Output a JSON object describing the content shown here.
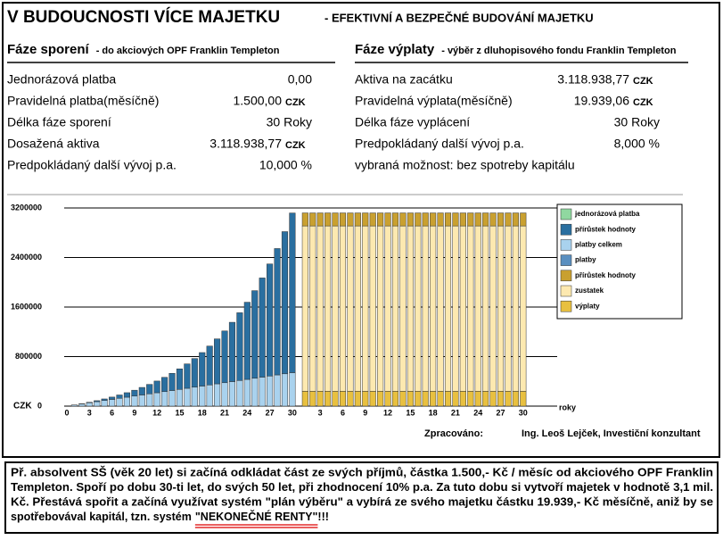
{
  "header": {
    "title": "V BUDOUCNOSTI VÍCE MAJETKU",
    "subtitle": "- EFEKTIVNÍ A BEZPEČNÉ BUDOVÁNÍ MAJETKU"
  },
  "panels": [
    {
      "title": "Fáze sporení",
      "subtitle": "- do akciových OPF Franklin Templeton",
      "rows": [
        {
          "label": "Jednorázová platba",
          "value": "0,00"
        },
        {
          "label": "Pravidelná platba(měsíčně)",
          "value": "1.500,00",
          "unit": "CZK"
        },
        {
          "label": "Délka fáze sporení",
          "value": "30 Roky"
        },
        {
          "label": "Dosažená aktiva",
          "value": "3.118.938,77",
          "unit": "CZK"
        },
        {
          "label": "Predpokládaný další vývoj p.a.",
          "value": "10,000 %"
        }
      ]
    },
    {
      "title": "Fáze výplaty",
      "subtitle": "- výběr z dluhopisového fondu Franklin Templeton",
      "rows": [
        {
          "label": "Aktiva na zacátku",
          "value": "3.118.938,77",
          "unit": "CZK"
        },
        {
          "label": "Pravidelná výplata(měsíčně)",
          "value": "19.939,06",
          "unit": "CZK"
        },
        {
          "label": "Délka fáze vyplácení",
          "value": "30 Roky"
        },
        {
          "label": "Predpokládaný další vývoj p.a.",
          "value": "8,000 %"
        },
        {
          "label": "vybraná možnost: bez spotreby kapitálu"
        }
      ]
    }
  ],
  "chart_data": {
    "type": "stacked-bar",
    "ylabel": "CZK",
    "xlabel": "roky",
    "categories": [
      "0",
      null,
      null,
      "3",
      null,
      null,
      "6",
      null,
      null,
      "9",
      null,
      null,
      "12",
      null,
      null,
      "15",
      null,
      null,
      "18",
      null,
      null,
      "21",
      null,
      null,
      "24",
      null,
      null,
      "27",
      null,
      null,
      "30",
      null,
      null,
      "3",
      null,
      null,
      "6",
      null,
      null,
      "9",
      null,
      null,
      "12",
      null,
      null,
      "15",
      null,
      null,
      "18",
      null,
      null,
      "21",
      null,
      null,
      "24",
      null,
      null,
      "27",
      null,
      null,
      "30"
    ],
    "ylim": [
      0,
      3200000
    ],
    "yticks": [
      0,
      800000,
      1600000,
      2400000,
      3200000
    ],
    "grid": true,
    "legend": "right",
    "series": [
      {
        "name": "jednorázová platba",
        "color": "#90d8a0",
        "values": [
          null,
          null,
          null,
          null,
          null,
          null,
          null,
          null,
          null,
          null,
          null,
          null,
          null,
          null,
          null,
          null,
          null,
          null,
          null,
          null,
          null,
          null,
          null,
          null,
          null,
          null,
          null,
          null,
          null,
          null,
          null,
          null,
          null,
          null,
          null,
          null,
          null,
          null,
          null,
          null,
          null,
          null,
          null,
          null,
          null,
          null,
          null,
          null,
          null,
          null,
          null,
          null,
          null,
          null,
          null,
          null,
          null,
          null,
          null,
          null,
          null
        ]
      },
      {
        "name": "přírůstek hodnoty",
        "color": "#2a6fa0",
        "values": [
          0,
          1000,
          4000,
          9000,
          16000,
          26000,
          38000,
          54000,
          73000,
          95000,
          122000,
          153000,
          189000,
          231000,
          278000,
          332000,
          394000,
          463000,
          541000,
          628000,
          726000,
          836000,
          958000,
          1094000,
          1246000,
          1415000,
          1602000,
          1810000,
          2041000,
          2296000,
          2579000,
          null,
          null,
          null,
          null,
          null,
          null,
          null,
          null,
          null,
          null,
          null,
          null,
          null,
          null,
          null,
          null,
          null,
          null,
          null,
          null,
          null,
          null,
          null,
          null,
          null,
          null,
          null,
          null,
          null,
          null
        ]
      },
      {
        "name": "platby celkem",
        "color": "#a9d2ee",
        "values": [
          0,
          18000,
          36000,
          54000,
          72000,
          90000,
          108000,
          126000,
          144000,
          162000,
          180000,
          198000,
          216000,
          234000,
          252000,
          270000,
          288000,
          306000,
          324000,
          342000,
          360000,
          378000,
          396000,
          414000,
          432000,
          450000,
          468000,
          486000,
          504000,
          522000,
          540000,
          null,
          null,
          null,
          null,
          null,
          null,
          null,
          null,
          null,
          null,
          null,
          null,
          null,
          null,
          null,
          null,
          null,
          null,
          null,
          null,
          null,
          null,
          null,
          null,
          null,
          null,
          null,
          null,
          null,
          null
        ]
      },
      {
        "name": "platby",
        "color": "#5a8fc0",
        "values": [
          null,
          null,
          null,
          null,
          null,
          null,
          null,
          null,
          null,
          null,
          null,
          null,
          null,
          null,
          null,
          null,
          null,
          null,
          null,
          null,
          null,
          null,
          null,
          null,
          null,
          null,
          null,
          null,
          null,
          null,
          null,
          null,
          null,
          null,
          null,
          null,
          null,
          null,
          null,
          null,
          null,
          null,
          null,
          null,
          null,
          null,
          null,
          null,
          null,
          null,
          null,
          null,
          null,
          null,
          null,
          null,
          null,
          null,
          null,
          null,
          null
        ]
      },
      {
        "name": "přírůstek hodnoty",
        "color": "#c9a030",
        "values": [
          null,
          null,
          null,
          null,
          null,
          null,
          null,
          null,
          null,
          null,
          null,
          null,
          null,
          null,
          null,
          null,
          null,
          null,
          null,
          null,
          null,
          null,
          null,
          null,
          null,
          null,
          null,
          null,
          null,
          null,
          null,
          210000,
          210000,
          210000,
          210000,
          210000,
          210000,
          210000,
          210000,
          210000,
          210000,
          210000,
          210000,
          210000,
          210000,
          210000,
          210000,
          210000,
          210000,
          210000,
          210000,
          210000,
          210000,
          210000,
          210000,
          210000,
          210000,
          210000,
          210000,
          210000,
          210000
        ]
      },
      {
        "name": "zustatek",
        "color": "#fde9b0",
        "values": [
          null,
          null,
          null,
          null,
          null,
          null,
          null,
          null,
          null,
          null,
          null,
          null,
          null,
          null,
          null,
          null,
          null,
          null,
          null,
          null,
          null,
          null,
          null,
          null,
          null,
          null,
          null,
          null,
          null,
          null,
          null,
          2670000,
          2670000,
          2670000,
          2670000,
          2670000,
          2670000,
          2670000,
          2670000,
          2670000,
          2670000,
          2670000,
          2670000,
          2670000,
          2670000,
          2670000,
          2670000,
          2670000,
          2670000,
          2670000,
          2670000,
          2670000,
          2670000,
          2670000,
          2670000,
          2670000,
          2670000,
          2670000,
          2670000,
          2670000,
          2670000
        ]
      },
      {
        "name": "výplaty",
        "color": "#e8c040",
        "values": [
          null,
          null,
          null,
          null,
          null,
          null,
          null,
          null,
          null,
          null,
          null,
          null,
          null,
          null,
          null,
          null,
          null,
          null,
          null,
          null,
          null,
          null,
          null,
          null,
          null,
          null,
          null,
          null,
          null,
          null,
          null,
          240000,
          240000,
          240000,
          240000,
          240000,
          240000,
          240000,
          240000,
          240000,
          240000,
          240000,
          240000,
          240000,
          240000,
          240000,
          240000,
          240000,
          240000,
          240000,
          240000,
          240000,
          240000,
          240000,
          240000,
          240000,
          240000,
          240000,
          240000,
          240000,
          240000
        ]
      }
    ]
  },
  "footer": {
    "label": "Zpracováno:",
    "author": "Ing. Leoš Lejček, Investiční konzultant"
  },
  "note": {
    "lines": [
      "Př. absolvent SŠ (věk 20 let) si začíná odkládat část ze svých příjmů, částka 1.500,- Kč / měsíc od akciového OPF Franklin",
      "Templeton. Spoří po dobu 30-ti let, do svých 50 let, při zhodnocení 10% p.a. Za tuto dobu si vytvoří majetek v hodnotě 3,1 mil.",
      "Kč. Přestává spořit a začíná využívat systém \"plán výběru\" a vybírá ze svého majetku částku 19.939,- Kč měsíčně, aniž by se"
    ],
    "last_line": "spotřebovával kapitál, tzn. systém",
    "highlight": "\"NEKONEČNÉ RENTY\"",
    "ending": "!!!"
  }
}
